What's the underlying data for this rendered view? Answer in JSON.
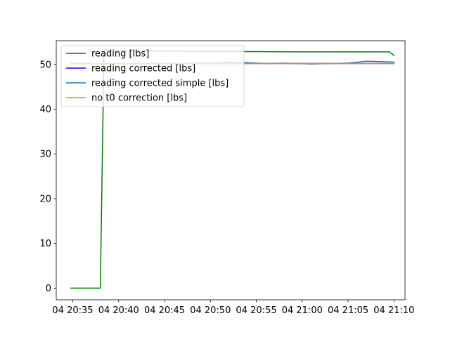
{
  "chart_data": {
    "type": "line",
    "title": "",
    "xlabel": "",
    "ylabel": "",
    "x_tick_labels": [
      "04 20:35",
      "04 20:40",
      "04 20:45",
      "04 20:50",
      "04 20:55",
      "04 21:00",
      "04 21:05",
      "04 21:10"
    ],
    "x_tick_minutes": [
      35,
      40,
      45,
      50,
      55,
      60,
      65,
      70
    ],
    "x_unit_note": "minutes after 20:00",
    "xlim": [
      33.2,
      71.2
    ],
    "y_ticks": [
      0,
      10,
      20,
      30,
      40,
      50
    ],
    "ylim": [
      -2.6,
      55.3
    ],
    "grid": false,
    "legend_position": "upper-left",
    "series": [
      {
        "name": "reading [lbs]",
        "color": "#008000",
        "points": [
          [
            34.8,
            0
          ],
          [
            38,
            0
          ],
          [
            38.4,
            53.3
          ],
          [
            40,
            53.1
          ],
          [
            50,
            52.9
          ],
          [
            60,
            52.8
          ],
          [
            69.5,
            52.8
          ],
          [
            70,
            52.0
          ]
        ]
      },
      {
        "name": "reading corrected [lbs]",
        "color": "#0000ff",
        "points": [
          [
            34.8,
            50.2
          ],
          [
            40,
            50.2
          ],
          [
            50,
            50.2
          ],
          [
            60,
            50.2
          ],
          [
            70,
            50.2
          ]
        ]
      },
      {
        "name": "reading corrected simple [lbs]",
        "color": "#1f77b4",
        "points": [
          [
            34.8,
            50.2
          ],
          [
            45,
            50.2
          ],
          [
            50,
            50.3
          ],
          [
            52,
            50.5
          ],
          [
            54,
            50.4
          ],
          [
            56,
            50.2
          ],
          [
            58,
            50.3
          ],
          [
            61,
            50.1
          ],
          [
            63,
            50.2
          ],
          [
            65,
            50.3
          ],
          [
            67,
            50.7
          ],
          [
            69,
            50.6
          ],
          [
            70,
            50.5
          ]
        ]
      },
      {
        "name": "no t0 correction [lbs]",
        "color": "#ff7f0e",
        "points": [
          [
            34.8,
            50.1
          ],
          [
            40,
            50.1
          ],
          [
            50,
            50.2
          ],
          [
            60,
            50.2
          ],
          [
            70,
            50.2
          ]
        ]
      }
    ]
  }
}
